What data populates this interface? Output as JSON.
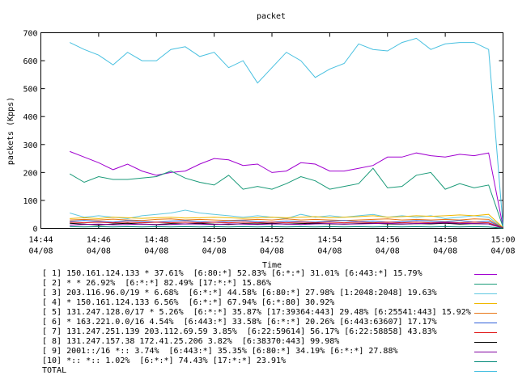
{
  "chart_data": {
    "type": "line",
    "title": "packet",
    "xlabel": "Time",
    "ylabel": "packets (Kpps)",
    "ylim": [
      0,
      700
    ],
    "yticks": [
      "0",
      "100",
      "200",
      "300",
      "400",
      "500",
      "600",
      "700"
    ],
    "xlim": [
      "14:44",
      "15:00"
    ],
    "xticks": [
      {
        "time": "14:44",
        "date": "04/08"
      },
      {
        "time": "14:46",
        "date": "04/08"
      },
      {
        "time": "14:48",
        "date": "04/08"
      },
      {
        "time": "14:50",
        "date": "04/08"
      },
      {
        "time": "14:52",
        "date": "04/08"
      },
      {
        "time": "14:54",
        "date": "04/08"
      },
      {
        "time": "14:56",
        "date": "04/08"
      },
      {
        "time": "14:58",
        "date": "04/08"
      },
      {
        "time": "15:00",
        "date": "04/08"
      }
    ],
    "grid": false,
    "legend_position": "bottom",
    "x": [
      "14:45:00",
      "14:45:30",
      "14:46:00",
      "14:46:30",
      "14:47:00",
      "14:47:30",
      "14:48:00",
      "14:48:30",
      "14:49:00",
      "14:49:30",
      "14:50:00",
      "14:50:30",
      "14:51:00",
      "14:51:30",
      "14:52:00",
      "14:52:30",
      "14:53:00",
      "14:53:30",
      "14:54:00",
      "14:54:30",
      "14:55:00",
      "14:55:30",
      "14:56:00",
      "14:56:30",
      "14:57:00",
      "14:57:30",
      "14:58:00",
      "14:58:30",
      "14:59:00",
      "14:59:30",
      "15:00:00"
    ],
    "series": [
      {
        "name": "[ 1] 150.161.124.133 * 37.61%  [6:80:*] 52.83% [6:*:*] 31.01% [6:443:*] 15.79%",
        "color": "#a000d0",
        "values": [
          275,
          255,
          235,
          210,
          230,
          205,
          190,
          200,
          205,
          230,
          250,
          245,
          225,
          230,
          200,
          205,
          235,
          230,
          205,
          205,
          215,
          225,
          255,
          255,
          270,
          260,
          255,
          265,
          260,
          270,
          5
        ]
      },
      {
        "name": "[ 2] * * 26.92%  [6:*:*] 82.49% [17:*:*] 15.86%",
        "color": "#1a9a78",
        "values": [
          195,
          165,
          185,
          175,
          175,
          180,
          185,
          205,
          180,
          165,
          155,
          190,
          140,
          150,
          140,
          160,
          185,
          170,
          140,
          150,
          160,
          215,
          145,
          150,
          190,
          200,
          140,
          160,
          145,
          155,
          5
        ]
      },
      {
        "name": "[ 3] 203.116.96.0/19 * 6.68%  [6:*:*] 44.58% [6:80:*] 27.98% [1:2048:2048] 19.63%",
        "color": "#60c8e0",
        "values": [
          55,
          40,
          45,
          40,
          35,
          45,
          50,
          55,
          65,
          55,
          50,
          45,
          40,
          45,
          40,
          35,
          50,
          40,
          45,
          40,
          45,
          50,
          40,
          45,
          40,
          45,
          35,
          40,
          45,
          40,
          3
        ]
      },
      {
        "name": "[ 4] * 150.161.124.133 6.56%  [6:*:*] 67.94% [6:*:80] 30.92%",
        "color": "#f0b800",
        "values": [
          35,
          38,
          35,
          40,
          38,
          36,
          38,
          40,
          37,
          38,
          40,
          38,
          36,
          38,
          40,
          38,
          40,
          42,
          38,
          40,
          42,
          45,
          40,
          42,
          45,
          43,
          45,
          48,
          45,
          50,
          3
        ]
      },
      {
        "name": "[ 5] 131.247.128.0/17 * 5.26%  [6:*:*] 35.87% [17:39364:443] 29.48% [6:25541:443] 15.92%",
        "color": "#e87818",
        "values": [
          30,
          32,
          30,
          33,
          30,
          28,
          32,
          34,
          30,
          32,
          30,
          28,
          30,
          32,
          30,
          34,
          30,
          32,
          30,
          28,
          30,
          32,
          34,
          30,
          32,
          30,
          32,
          30,
          34,
          32,
          2
        ]
      },
      {
        "name": "[ 6] * 163.221.0.0/16 4.54%  [6:443:*] 33.58% [6:*:*] 20.26% [6:443:63607] 17.17%",
        "color": "#3060d8",
        "values": [
          25,
          28,
          25,
          22,
          28,
          25,
          22,
          26,
          28,
          24,
          22,
          26,
          28,
          24,
          22,
          26,
          24,
          22,
          26,
          28,
          24,
          26,
          22,
          24,
          28,
          26,
          24,
          28,
          22,
          26,
          2
        ]
      },
      {
        "name": "[ 7] 131.247.251.139 203.112.69.59 3.85%  [6:22:59614] 56.17% [6:22:58858] 43.83%",
        "color": "#e01818",
        "values": [
          22,
          20,
          22,
          20,
          22,
          20,
          22,
          20,
          22,
          20,
          22,
          20,
          22,
          20,
          22,
          20,
          22,
          20,
          22,
          20,
          22,
          20,
          22,
          20,
          22,
          20,
          22,
          20,
          22,
          20,
          2
        ]
      },
      {
        "name": "[ 8] 131.247.157.38 172.41.25.206 3.82%  [6:38370:443] 99.98%",
        "color": "#000000",
        "values": [
          18,
          15,
          12,
          16,
          18,
          15,
          14,
          17,
          16,
          18,
          15,
          14,
          17,
          16,
          18,
          15,
          17,
          18,
          16,
          15,
          17,
          18,
          16,
          15,
          17,
          16,
          18,
          15,
          17,
          16,
          1
        ]
      },
      {
        "name": "[ 9] 2001::/16 *:: 3.74%  [6:443:*] 35.35% [6:80:*] 34.19% [6:*:*] 27.88%",
        "color": "#8000a0",
        "values": [
          12,
          14,
          15,
          13,
          14,
          15,
          13,
          14,
          16,
          15,
          14,
          16,
          15,
          14,
          16,
          15,
          14,
          16,
          17,
          15,
          16,
          17,
          18,
          16,
          17,
          18,
          20,
          18,
          17,
          16,
          1
        ]
      },
      {
        "name": "[10] *:: *:: 1.02%  [6:*:*] 74.43% [17:*:*] 23.91%",
        "color": "#008878",
        "values": [
          6,
          5,
          6,
          5,
          6,
          5,
          6,
          5,
          6,
          5,
          6,
          5,
          6,
          5,
          6,
          5,
          6,
          5,
          6,
          5,
          6,
          5,
          6,
          5,
          6,
          5,
          6,
          5,
          6,
          5,
          1
        ]
      },
      {
        "name": "TOTAL",
        "color": "#48c0e0",
        "values": [
          665,
          640,
          620,
          585,
          630,
          600,
          600,
          640,
          650,
          615,
          630,
          575,
          600,
          520,
          575,
          630,
          600,
          540,
          570,
          590,
          660,
          640,
          635,
          665,
          680,
          640,
          660,
          665,
          665,
          640,
          8
        ]
      }
    ]
  }
}
